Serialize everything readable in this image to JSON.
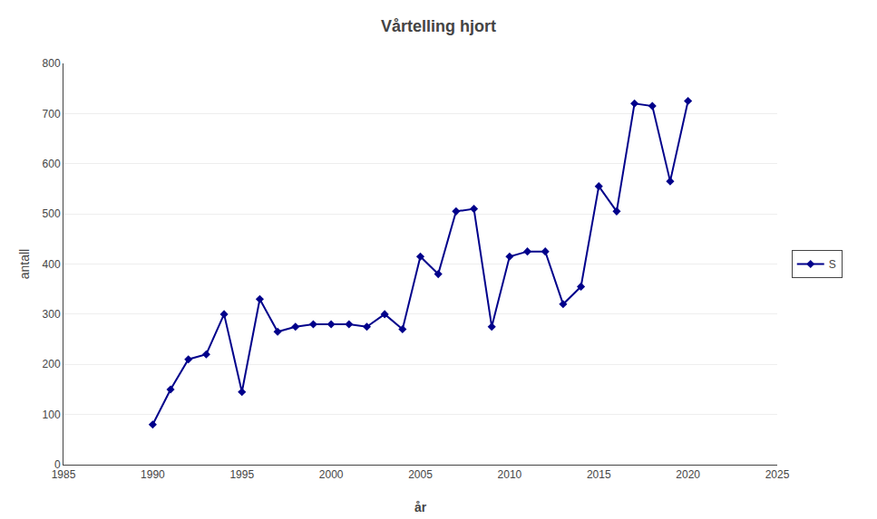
{
  "chart_data": {
    "type": "line",
    "title": "Vårtelling hjort",
    "xlabel": "år",
    "ylabel": "antall",
    "x": [
      1990,
      1991,
      1992,
      1993,
      1994,
      1995,
      1996,
      1997,
      1998,
      1999,
      2000,
      2001,
      2002,
      2003,
      2004,
      2005,
      2006,
      2007,
      2008,
      2009,
      2010,
      2011,
      2012,
      2013,
      2014,
      2015,
      2016,
      2017,
      2018,
      2019,
      2020
    ],
    "series": [
      {
        "name": "S",
        "color": "#00008B",
        "marker": "diamond",
        "values": [
          80,
          150,
          210,
          220,
          300,
          145,
          330,
          265,
          275,
          280,
          280,
          280,
          275,
          300,
          270,
          415,
          380,
          505,
          510,
          275,
          415,
          425,
          425,
          320,
          355,
          555,
          505,
          720,
          715,
          565,
          725
        ]
      }
    ],
    "xlim": [
      1985,
      2025
    ],
    "ylim": [
      0,
      800
    ],
    "xticks": [
      1985,
      1990,
      1995,
      2000,
      2005,
      2010,
      2015,
      2020,
      2025
    ],
    "yticks": [
      0,
      100,
      200,
      300,
      400,
      500,
      600,
      700,
      800
    ],
    "grid": "y",
    "legend": "right"
  }
}
